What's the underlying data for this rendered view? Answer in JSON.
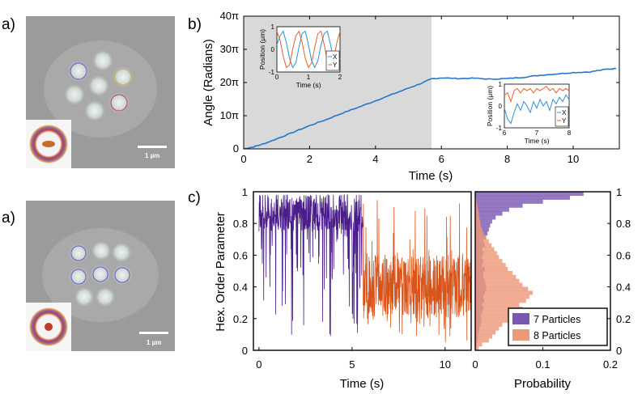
{
  "panel_labels": {
    "a": "a)",
    "a2": "a)",
    "b": "b)",
    "c": "c)"
  },
  "micrographs": {
    "top": {
      "scale_bar": "1 µm"
    },
    "bottom": {
      "scale_bar": "1 µm"
    }
  },
  "colors": {
    "angle_line": "#1f77d0",
    "shade": "#d9d9d9",
    "seven_particles": "#4a1c8c",
    "seven_hist": "#7a58b0",
    "eight_particles": "#d9541a",
    "eight_hist": "#ee9878",
    "inset_x": "#2f8fd8",
    "inset_y": "#e8602a"
  },
  "chart_data": [
    {
      "id": "angle_vs_time",
      "type": "line",
      "xlabel": "Time (s)",
      "ylabel": "Angle (Radians)",
      "xlim": [
        0,
        11.4
      ],
      "ylim": [
        0,
        40
      ],
      "x_ticks": [
        "0",
        "2",
        "4",
        "6",
        "8",
        "10"
      ],
      "x_tick_values": [
        0,
        2,
        4,
        6,
        8,
        10
      ],
      "y_ticks": [
        "0",
        "10π",
        "20π",
        "30π",
        "40π"
      ],
      "y_tick_values": [
        0,
        10,
        20,
        30,
        40
      ],
      "shaded_region": [
        0,
        5.7
      ],
      "series": [
        {
          "name": "Angle",
          "x": [
            0,
            0.3,
            0.6,
            1.0,
            1.5,
            2.0,
            2.5,
            3.0,
            3.5,
            4.0,
            4.5,
            5.0,
            5.4,
            5.7,
            6.0,
            6.5,
            7.0,
            7.5,
            8.0,
            8.5,
            9.0,
            9.5,
            10.0,
            10.5,
            11.0,
            11.3
          ],
          "y": [
            0,
            0.6,
            1.5,
            3.0,
            5.0,
            7.0,
            8.8,
            10.8,
            12.6,
            14.5,
            16.4,
            18.3,
            19.8,
            21.1,
            21.4,
            21.2,
            21.3,
            21.0,
            21.2,
            21.6,
            22.2,
            22.6,
            23.0,
            23.2,
            24.0,
            24.2
          ]
        }
      ]
    },
    {
      "id": "inset_7",
      "type": "line",
      "xlabel": "Time (s)",
      "ylabel": "Position (μm)",
      "xlim": [
        0,
        2
      ],
      "ylim": [
        -1,
        1
      ],
      "x_ticks": [
        "0",
        "1",
        "2"
      ],
      "y_ticks": [
        "-1",
        "0",
        "1"
      ],
      "legend": [
        "X",
        "Y"
      ],
      "series": [
        {
          "name": "X",
          "x": [
            0,
            0.1,
            0.2,
            0.3,
            0.4,
            0.5,
            0.6,
            0.7,
            0.8,
            0.9,
            1.0,
            1.1,
            1.2,
            1.3,
            1.4,
            1.5,
            1.6,
            1.7,
            1.8,
            1.9,
            2.0
          ],
          "y": [
            0.2,
            0.6,
            0.8,
            0.3,
            -0.4,
            -0.8,
            -0.6,
            0.1,
            0.7,
            0.8,
            0.2,
            -0.5,
            -0.8,
            -0.5,
            0.2,
            0.7,
            0.8,
            0.2,
            -0.5,
            -0.8,
            -0.4
          ]
        },
        {
          "name": "Y",
          "x": [
            0,
            0.1,
            0.2,
            0.3,
            0.4,
            0.5,
            0.6,
            0.7,
            0.8,
            0.9,
            1.0,
            1.1,
            1.2,
            1.3,
            1.4,
            1.5,
            1.6,
            1.7,
            1.8,
            1.9,
            2.0
          ],
          "y": [
            0.8,
            0.4,
            -0.3,
            -0.8,
            -0.7,
            0.0,
            0.6,
            0.8,
            0.3,
            -0.4,
            -0.8,
            -0.6,
            0.1,
            0.7,
            0.8,
            0.2,
            -0.5,
            -0.8,
            -0.4,
            0.3,
            0.8
          ]
        }
      ]
    },
    {
      "id": "inset_8",
      "type": "line",
      "xlabel": "Time (s)",
      "ylabel": "Position (μm)",
      "xlim": [
        6,
        8
      ],
      "ylim": [
        -1,
        1
      ],
      "x_ticks": [
        "6",
        "7",
        "8"
      ],
      "y_ticks": [
        "-1",
        "0",
        "1"
      ],
      "legend": [
        "X",
        "Y"
      ],
      "series": [
        {
          "name": "X",
          "x": [
            6.0,
            6.1,
            6.2,
            6.3,
            6.4,
            6.5,
            6.6,
            6.7,
            6.8,
            6.9,
            7.0,
            7.1,
            7.2,
            7.3,
            7.4,
            7.5,
            7.6,
            7.7,
            7.8,
            7.9,
            8.0
          ],
          "y": [
            -0.1,
            -0.6,
            -0.8,
            -0.3,
            0.1,
            -0.2,
            0.2,
            0.0,
            -0.3,
            0.2,
            -0.1,
            0.3,
            0.0,
            0.2,
            -0.2,
            0.3,
            0.1,
            0.4,
            0.2,
            0.5,
            0.3
          ]
        },
        {
          "name": "Y",
          "x": [
            6.0,
            6.1,
            6.2,
            6.3,
            6.4,
            6.5,
            6.6,
            6.7,
            6.8,
            6.9,
            7.0,
            7.1,
            7.2,
            7.3,
            7.4,
            7.5,
            7.6,
            7.7,
            7.8,
            7.9,
            8.0
          ],
          "y": [
            0.5,
            0.6,
            0.2,
            0.7,
            0.8,
            0.6,
            0.8,
            0.7,
            0.8,
            0.6,
            0.8,
            0.7,
            0.8,
            0.9,
            0.7,
            0.8,
            0.6,
            0.8,
            0.7,
            0.8,
            0.7
          ]
        }
      ]
    },
    {
      "id": "hex_order_time",
      "type": "line",
      "xlabel": "Time (s)",
      "ylabel": "Hex. Order Parameter",
      "xlim": [
        -0.3,
        11.4
      ],
      "ylim": [
        0,
        1
      ],
      "x_ticks": [
        "0",
        "5",
        "10"
      ],
      "x_tick_values": [
        0,
        5,
        10
      ],
      "y_ticks": [
        "0",
        "0.2",
        "0.4",
        "0.6",
        "0.8",
        "1"
      ],
      "y_tick_values": [
        0,
        0.2,
        0.4,
        0.6,
        0.8,
        1
      ],
      "series": [
        {
          "name": "7 Particles",
          "t_range": [
            0,
            5.6
          ],
          "typical_range": [
            0.75,
            1.0
          ],
          "min_dips": 0.05
        },
        {
          "name": "8 Particles",
          "t_range": [
            5.6,
            11.4
          ],
          "typical_range": [
            0.2,
            0.6
          ],
          "max_spikes": 0.98
        }
      ]
    },
    {
      "id": "hex_order_hist",
      "type": "bar",
      "orientation": "horizontal",
      "xlabel": "Probability",
      "xlim": [
        0,
        0.2
      ],
      "ylim": [
        0,
        1
      ],
      "x_ticks": [
        "0",
        "0.1",
        "0.2"
      ],
      "x_tick_values": [
        0,
        0.1,
        0.2
      ],
      "y_ticks": [
        "0",
        "0.2",
        "0.4",
        "0.6",
        "0.8",
        "1"
      ],
      "y_tick_values": [
        0,
        0.2,
        0.4,
        0.6,
        0.8,
        1
      ],
      "bin_width": 0.025,
      "bin_starts": [
        0.0,
        0.025,
        0.05,
        0.075,
        0.1,
        0.125,
        0.15,
        0.175,
        0.2,
        0.225,
        0.25,
        0.275,
        0.3,
        0.325,
        0.35,
        0.375,
        0.4,
        0.425,
        0.45,
        0.475,
        0.5,
        0.525,
        0.55,
        0.575,
        0.6,
        0.625,
        0.65,
        0.675,
        0.7,
        0.725,
        0.75,
        0.775,
        0.8,
        0.825,
        0.85,
        0.875,
        0.9,
        0.925,
        0.95,
        0.975
      ],
      "legend": [
        "7 Particles",
        "8 Particles"
      ],
      "legend_position": "bottom-right",
      "series": [
        {
          "name": "7 Particles",
          "values": [
            0,
            0.002,
            0.003,
            0.004,
            0.005,
            0.006,
            0.008,
            0.009,
            0.008,
            0.01,
            0.012,
            0.01,
            0.013,
            0.012,
            0.014,
            0.016,
            0.015,
            0.014,
            0.012,
            0.012,
            0.014,
            0.01,
            0.012,
            0.01,
            0.012,
            0.01,
            0.014,
            0.012,
            0.016,
            0.018,
            0.02,
            0.022,
            0.025,
            0.03,
            0.04,
            0.05,
            0.07,
            0.1,
            0.14,
            0.16
          ]
        },
        {
          "name": "8 Particles",
          "values": [
            0.005,
            0.01,
            0.02,
            0.025,
            0.03,
            0.035,
            0.04,
            0.05,
            0.055,
            0.06,
            0.07,
            0.065,
            0.075,
            0.08,
            0.085,
            0.078,
            0.07,
            0.065,
            0.06,
            0.055,
            0.048,
            0.045,
            0.04,
            0.035,
            0.032,
            0.028,
            0.024,
            0.02,
            0.016,
            0.012,
            0.01,
            0.008,
            0.007,
            0.006,
            0.005,
            0.004,
            0.003,
            0.002,
            0.001,
            0.0
          ]
        }
      ]
    }
  ]
}
